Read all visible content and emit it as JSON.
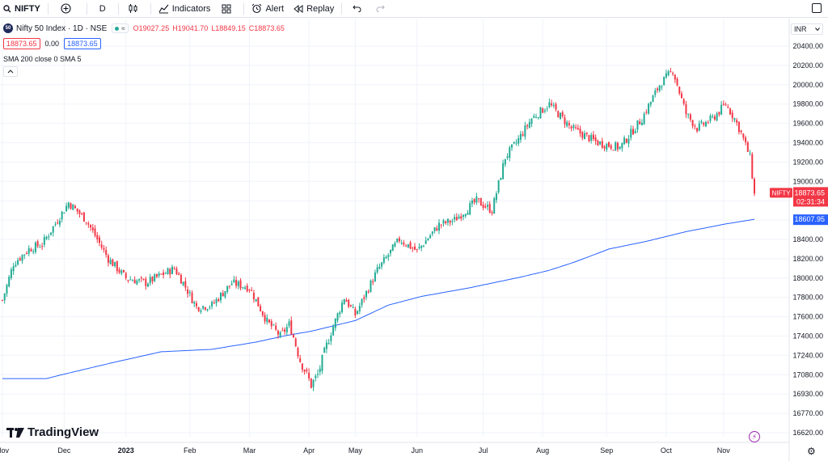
{
  "toolbar": {
    "symbol": "NIFTY",
    "interval": "D",
    "indicators_label": "Indicators",
    "alert_label": "Alert",
    "replay_label": "Replay"
  },
  "legend": {
    "logo_text": "50",
    "title": "Nifty 50 Index · 1D · NSE",
    "pill": "≈",
    "open": "O19027.25",
    "high": "H19041.70",
    "low": "L18849.15",
    "close": "C18873.65",
    "sell_price": "18873.65",
    "spread": "0.00",
    "buy_price": "18873.65",
    "sma_label": "SMA 200 close 0 SMA 5"
  },
  "currency": "INR",
  "brand": "TradingView",
  "colors": {
    "up": "#22ab94",
    "down": "#f23645",
    "sma": "#2962ff",
    "grid": "#f0f3fa"
  },
  "chart_data": {
    "type": "candlestick",
    "symbol": "NIFTY",
    "y_ticks": [
      20400,
      20200,
      20000,
      19800,
      19600,
      19400,
      19200,
      19000,
      18800,
      18600,
      18400,
      18200,
      18000,
      17800,
      17600,
      17400,
      17240,
      17080,
      16930,
      16770,
      16620
    ],
    "x_ticks": [
      "Nov",
      "Dec",
      "2023",
      "Feb",
      "Mar",
      "Apr",
      "May",
      "Jun",
      "Jul",
      "Aug",
      "Sep",
      "Oct",
      "Nov"
    ],
    "last_price_label": "NIFTY",
    "last_price": "18873.65",
    "countdown": "02:31:34",
    "sma_price": "18607.95",
    "close_anchors": [
      [
        0,
        17770
      ],
      [
        5,
        18150
      ],
      [
        12,
        18300
      ],
      [
        18,
        18350
      ],
      [
        25,
        18600
      ],
      [
        30,
        18780
      ],
      [
        38,
        18600
      ],
      [
        48,
        18200
      ],
      [
        56,
        18000
      ],
      [
        65,
        17950
      ],
      [
        78,
        18100
      ],
      [
        82,
        17950
      ],
      [
        88,
        17700
      ],
      [
        95,
        17720
      ],
      [
        104,
        17950
      ],
      [
        112,
        17900
      ],
      [
        120,
        17550
      ],
      [
        126,
        17400
      ],
      [
        130,
        17520
      ],
      [
        135,
        17200
      ],
      [
        140,
        17000
      ],
      [
        143,
        17080
      ],
      [
        148,
        17380
      ],
      [
        155,
        17800
      ],
      [
        160,
        17620
      ],
      [
        170,
        18080
      ],
      [
        180,
        18400
      ],
      [
        188,
        18280
      ],
      [
        198,
        18550
      ],
      [
        205,
        18600
      ],
      [
        215,
        18800
      ],
      [
        222,
        18700
      ],
      [
        228,
        19250
      ],
      [
        233,
        19400
      ],
      [
        240,
        19650
      ],
      [
        248,
        19800
      ],
      [
        252,
        19700
      ],
      [
        258,
        19550
      ],
      [
        262,
        19500
      ],
      [
        270,
        19400
      ],
      [
        280,
        19350
      ],
      [
        285,
        19500
      ],
      [
        290,
        19650
      ],
      [
        298,
        20000
      ],
      [
        304,
        20150
      ],
      [
        310,
        19700
      ],
      [
        315,
        19550
      ],
      [
        322,
        19650
      ],
      [
        328,
        19800
      ],
      [
        332,
        19650
      ],
      [
        335,
        19500
      ],
      [
        339,
        19250
      ],
      [
        341,
        18873.65
      ]
    ],
    "sma_anchors": [
      [
        0,
        17050
      ],
      [
        20,
        17050
      ],
      [
        50,
        17180
      ],
      [
        72,
        17270
      ],
      [
        95,
        17290
      ],
      [
        115,
        17350
      ],
      [
        140,
        17450
      ],
      [
        160,
        17560
      ],
      [
        175,
        17720
      ],
      [
        190,
        17810
      ],
      [
        212,
        17900
      ],
      [
        235,
        18010
      ],
      [
        248,
        18080
      ],
      [
        260,
        18170
      ],
      [
        275,
        18300
      ],
      [
        292,
        18380
      ],
      [
        310,
        18480
      ],
      [
        328,
        18560
      ],
      [
        341,
        18607.95
      ]
    ]
  }
}
